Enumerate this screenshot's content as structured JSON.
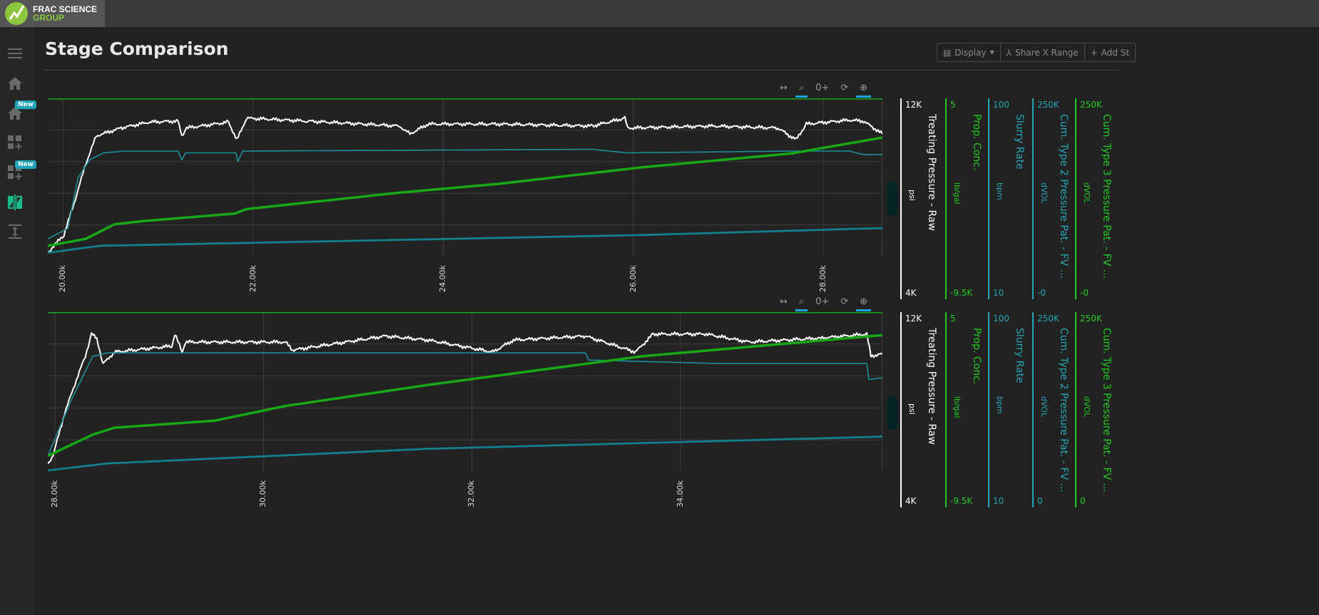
{
  "app": {
    "logo_line1": "FRAC SCIENCE",
    "logo_line2": "GROUP"
  },
  "sidebar": {
    "items": [
      {
        "icon": "menu-icon"
      },
      {
        "icon": "home-icon"
      },
      {
        "icon": "home-icon",
        "badge": "New"
      },
      {
        "icon": "dashboard-add-icon"
      },
      {
        "icon": "dashboard-add-icon",
        "badge": "New"
      },
      {
        "icon": "stage-comparison-icon",
        "active": true
      },
      {
        "icon": "vertical-expand-icon"
      }
    ]
  },
  "page": {
    "title": "Stage Comparison"
  },
  "toolbar": {
    "display": "Display",
    "share_x_range": "Share X Range",
    "add_stage": "Add St"
  },
  "colors": {
    "pressure": "#ffffff",
    "slurry": "#1d8f9c",
    "cum_type2": "#12808c",
    "cum_type3": "#17a817",
    "axis_green": "#22cc22",
    "axis_teal": "#26a5b5",
    "highlight": "#1ea5e0"
  },
  "chart_tools": [
    "pan-x",
    "box-zoom",
    "zoom-reset",
    "refresh",
    "crosshair"
  ],
  "chart_data": [
    {
      "type": "line",
      "xlim": [
        19.84,
        28.62
      ],
      "x_ticks": [
        "20.00k",
        "22.00k",
        "24.00k",
        "26.00k",
        "28.00k"
      ],
      "x_tick_values": [
        20,
        22,
        24,
        26,
        28
      ],
      "axes": [
        {
          "title": "Treating Pressure - Raw",
          "unit": "psi",
          "top": "12K",
          "bottom": "4K",
          "range": [
            4,
            12
          ],
          "color": "#ffffff"
        },
        {
          "title": "Prop. Conc.",
          "unit": "lb/gal",
          "top": "5",
          "bottom": "-9.5K",
          "color": "#22cc22"
        },
        {
          "title": "Slurry Rate",
          "unit": "bpm",
          "top": "100",
          "bottom": "10",
          "range": [
            10,
            100
          ],
          "color": "#26a5b5"
        },
        {
          "title": "Cum. Type 2 Pressure Pat. - FV ...",
          "unit": "dVOL",
          "top": "250K",
          "bottom": "-0",
          "range": [
            0,
            250
          ],
          "color": "#26a5b5"
        },
        {
          "title": "Cum. Type 3 Pressure Pat. - FV ...",
          "unit": "dVOL",
          "top": "250K",
          "bottom": "-0",
          "range": [
            0,
            250
          ],
          "color": "#22cc22"
        }
      ],
      "series": [
        {
          "axis": 0,
          "points": [
            [
              19.84,
              4.2
            ],
            [
              20.01,
              5.1
            ],
            [
              20.13,
              6.9
            ],
            [
              20.24,
              8.7
            ],
            [
              20.35,
              10.1
            ],
            [
              20.61,
              10.5
            ],
            [
              20.91,
              10.8
            ],
            [
              21.21,
              10.85
            ],
            [
              21.25,
              10.1
            ],
            [
              21.3,
              10.5
            ],
            [
              21.74,
              10.8
            ],
            [
              21.83,
              9.9
            ],
            [
              21.93,
              11.0
            ],
            [
              22.57,
              10.85
            ],
            [
              23.54,
              10.6
            ],
            [
              23.65,
              10.2
            ],
            [
              23.84,
              10.7
            ],
            [
              24.59,
              10.7
            ],
            [
              25.57,
              10.6
            ],
            [
              25.91,
              11.0
            ],
            [
              25.94,
              10.5
            ],
            [
              26.84,
              10.6
            ],
            [
              27.52,
              10.5
            ],
            [
              27.71,
              9.9
            ],
            [
              27.82,
              10.7
            ],
            [
              28.27,
              10.9
            ],
            [
              28.42,
              10.85
            ],
            [
              28.62,
              10.2
            ]
          ]
        },
        {
          "axis": 2,
          "points": [
            [
              19.84,
              20
            ],
            [
              20.05,
              26
            ],
            [
              20.16,
              55
            ],
            [
              20.28,
              65
            ],
            [
              20.43,
              69
            ],
            [
              20.65,
              70
            ],
            [
              21.21,
              70
            ],
            [
              21.25,
              65
            ],
            [
              21.29,
              69
            ],
            [
              21.82,
              69
            ],
            [
              21.84,
              64
            ],
            [
              21.89,
              70
            ],
            [
              25.57,
              71
            ],
            [
              25.93,
              69
            ],
            [
              27.67,
              70
            ],
            [
              28.27,
              70
            ],
            [
              28.42,
              68
            ],
            [
              28.62,
              68
            ]
          ]
        },
        {
          "axis": 4,
          "points": [
            [
              19.84,
              17
            ],
            [
              20.24,
              28
            ],
            [
              20.54,
              51
            ],
            [
              20.84,
              56
            ],
            [
              21.81,
              68
            ],
            [
              21.93,
              75
            ],
            [
              23.54,
              101
            ],
            [
              24.59,
              115
            ],
            [
              26.09,
              141
            ],
            [
              27.67,
              163
            ],
            [
              27.97,
              171
            ],
            [
              28.62,
              188
            ]
          ]
        },
        {
          "axis": 3,
          "points": [
            [
              19.84,
              6
            ],
            [
              20.39,
              17
            ],
            [
              23.09,
              25
            ],
            [
              26.09,
              34
            ],
            [
              28.62,
              45
            ]
          ]
        }
      ]
    },
    {
      "type": "line",
      "xlim": [
        27.93,
        35.94
      ],
      "x_ticks": [
        "28.00k",
        "30.00k",
        "32.00k",
        "34.00k"
      ],
      "x_tick_values": [
        28,
        30,
        32,
        34
      ],
      "axes": [
        {
          "title": "Treating Pressure - Raw",
          "unit": "psi",
          "top": "12K",
          "bottom": "4K",
          "range": [
            4,
            12
          ],
          "color": "#ffffff"
        },
        {
          "title": "Prop. Conc.",
          "unit": "lb/gal",
          "top": "5",
          "bottom": "-9.5K",
          "color": "#22cc22"
        },
        {
          "title": "Slurry Rate",
          "unit": "bpm",
          "top": "100",
          "bottom": "10",
          "range": [
            10,
            100
          ],
          "color": "#26a5b5"
        },
        {
          "title": "Cum. Type 2 Pressure Pat. - FV ...",
          "unit": "dVOL",
          "top": "250K",
          "bottom": "0",
          "range": [
            0,
            250
          ],
          "color": "#26a5b5"
        },
        {
          "title": "Cum. Type 3 Pressure Pat. - FV ...",
          "unit": "dVOL",
          "top": "250K",
          "bottom": "0",
          "range": [
            0,
            250
          ],
          "color": "#22cc22"
        }
      ],
      "series": [
        {
          "axis": 0,
          "points": [
            [
              27.93,
              4.4
            ],
            [
              27.98,
              4.8
            ],
            [
              28.09,
              6.9
            ],
            [
              28.19,
              8.4
            ],
            [
              28.29,
              9.8
            ],
            [
              28.35,
              10.9
            ],
            [
              28.4,
              10.7
            ],
            [
              28.46,
              9.4
            ],
            [
              28.57,
              10.0
            ],
            [
              29.12,
              10.3
            ],
            [
              29.15,
              10.9
            ],
            [
              29.22,
              10.0
            ],
            [
              29.25,
              10.5
            ],
            [
              30.21,
              10.5
            ],
            [
              30.28,
              10.1
            ],
            [
              31.17,
              10.8
            ],
            [
              31.58,
              10.6
            ],
            [
              32.2,
              10.0
            ],
            [
              32.4,
              10.6
            ],
            [
              33.09,
              10.8
            ],
            [
              33.57,
              10.0
            ],
            [
              33.74,
              10.9
            ],
            [
              34.25,
              10.9
            ],
            [
              34.66,
              10.5
            ],
            [
              35.35,
              10.7
            ],
            [
              35.79,
              10.9
            ],
            [
              35.83,
              9.8
            ],
            [
              35.94,
              9.9
            ]
          ]
        },
        {
          "axis": 2,
          "points": [
            [
              27.93,
              19
            ],
            [
              28.16,
              51
            ],
            [
              28.36,
              75
            ],
            [
              28.5,
              77
            ],
            [
              29.25,
              77
            ],
            [
              33.09,
              77
            ],
            [
              33.12,
              73
            ],
            [
              34.39,
              71
            ],
            [
              35.79,
              71
            ],
            [
              35.81,
              62
            ],
            [
              35.94,
              63
            ]
          ]
        },
        {
          "axis": 4,
          "points": [
            [
              27.93,
              25
            ],
            [
              28.36,
              58
            ],
            [
              28.57,
              69
            ],
            [
              29.53,
              80
            ],
            [
              30.21,
              103
            ],
            [
              31.58,
              136
            ],
            [
              33.64,
              181
            ],
            [
              35.94,
              214
            ]
          ]
        },
        {
          "axis": 3,
          "points": [
            [
              27.93,
              2
            ],
            [
              28.5,
              13
            ],
            [
              31.58,
              36
            ],
            [
              35.94,
              55
            ]
          ]
        }
      ]
    }
  ]
}
